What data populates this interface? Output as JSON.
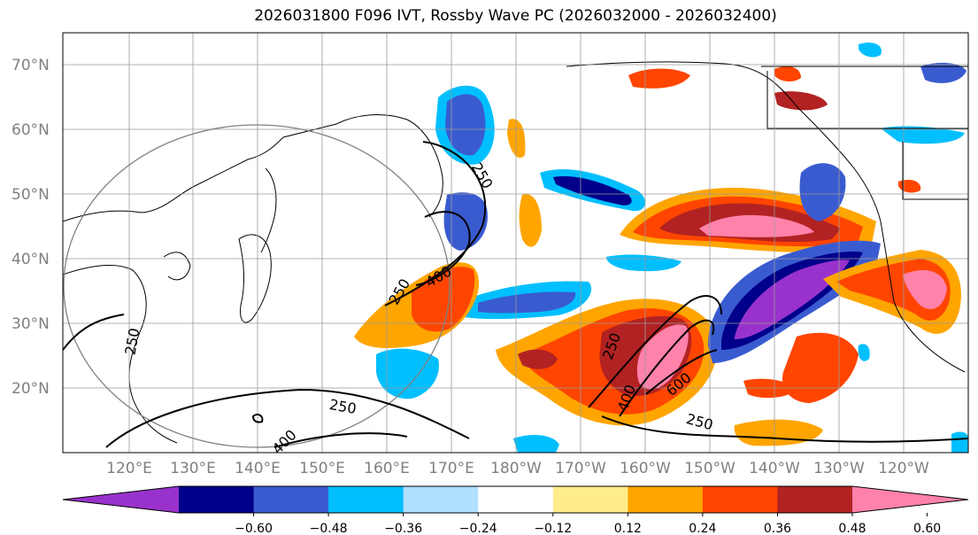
{
  "title": "2026031800 F096 IVT, Rossby Wave PC (2026032000 - 2026032400)",
  "lat_ticks": [
    "70°N",
    "60°N",
    "50°N",
    "40°N",
    "30°N",
    "20°N"
  ],
  "lon_ticks": [
    "120°E",
    "130°E",
    "140°E",
    "150°E",
    "160°E",
    "170°E",
    "180°W",
    "170°W",
    "160°W",
    "150°W",
    "140°W",
    "130°W",
    "120°W"
  ],
  "colorbar": {
    "colors": [
      "#9932cc",
      "#00008b",
      "#3a5bd0",
      "#00bfff",
      "#b0e0ff",
      "#ffffff",
      "#ffec8b",
      "#ffa500",
      "#ff4500",
      "#b22222",
      "#ff82ab"
    ],
    "tick_labels": [
      "−0.60",
      "−0.48",
      "−0.36",
      "−0.24",
      "−0.12",
      "0.12",
      "0.24",
      "0.36",
      "0.48",
      "0.60"
    ]
  },
  "contour_labels": [
    "250",
    "400",
    "250",
    "250",
    "250",
    "400",
    "250",
    "400",
    "600",
    "250"
  ]
}
